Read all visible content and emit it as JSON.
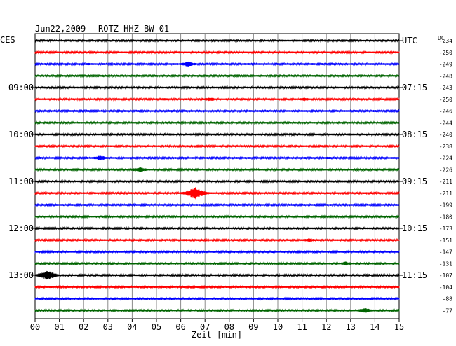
{
  "header": {
    "date": "Jun22,2009",
    "station": "ROTZ HHZ BW 01",
    "left_zone": "CES",
    "right_zone": "UTC",
    "dc_label": "DC"
  },
  "chart_data": {
    "type": "line",
    "title": "Jun22,2009   ROTZ HHZ BW 01",
    "xlabel": "Zeit [min]",
    "xlim": [
      0,
      15
    ],
    "x_ticks": [
      "00",
      "01",
      "02",
      "03",
      "04",
      "05",
      "06",
      "07",
      "08",
      "09",
      "10",
      "11",
      "12",
      "13",
      "14",
      "15"
    ],
    "grid": true,
    "trace_colors": [
      "#000000",
      "#ff0000",
      "#0000ff",
      "#006400"
    ],
    "left_time_labels": [
      {
        "trace": 4,
        "label": "09:00"
      },
      {
        "trace": 8,
        "label": "10:00"
      },
      {
        "trace": 12,
        "label": "11:00"
      },
      {
        "trace": 16,
        "label": "12:00"
      },
      {
        "trace": 20,
        "label": "13:00"
      }
    ],
    "right_time_labels": [
      {
        "trace": 0,
        "label": "UTC"
      },
      {
        "trace": 4,
        "label": "07:15"
      },
      {
        "trace": 8,
        "label": "08:15"
      },
      {
        "trace": 12,
        "label": "09:15"
      },
      {
        "trace": 16,
        "label": "10:15"
      },
      {
        "trace": 20,
        "label": "11:15"
      }
    ],
    "dc_offsets": [
      "-234",
      "-250",
      "-249",
      "-248",
      "-243",
      "-250",
      "-246",
      "-244",
      "-240",
      "-238",
      "-224",
      "-226",
      "-211",
      "-211",
      "-199",
      "-180",
      "-173",
      "-151",
      "-147",
      "-131",
      "-107",
      "-104",
      "-88",
      "-77"
    ],
    "events": [
      {
        "trace": 2,
        "minute": 6.3,
        "amplitude": 4
      },
      {
        "trace": 2,
        "minute": 2.2,
        "amplitude": 2
      },
      {
        "trace": 5,
        "minute": 7.2,
        "amplitude": 3
      },
      {
        "trace": 5,
        "minute": 11.1,
        "amplitude": 3
      },
      {
        "trace": 5,
        "minute": 5.3,
        "amplitude": 2
      },
      {
        "trace": 8,
        "minute": 5.6,
        "amplitude": 2
      },
      {
        "trace": 8,
        "minute": 13.0,
        "amplitude": 2
      },
      {
        "trace": 10,
        "minute": 2.7,
        "amplitude": 4
      },
      {
        "trace": 10,
        "minute": 12.1,
        "amplitude": 2
      },
      {
        "trace": 11,
        "minute": 4.3,
        "amplitude": 4
      },
      {
        "trace": 13,
        "minute": 6.6,
        "amplitude": 10
      },
      {
        "trace": 17,
        "minute": 6.2,
        "amplitude": 2
      },
      {
        "trace": 17,
        "minute": 11.3,
        "amplitude": 3
      },
      {
        "trace": 19,
        "minute": 12.8,
        "amplitude": 3
      },
      {
        "trace": 20,
        "minute": 0.5,
        "amplitude": 8
      },
      {
        "trace": 23,
        "minute": 7.5,
        "amplitude": 2
      },
      {
        "trace": 23,
        "minute": 13.6,
        "amplitude": 4
      }
    ]
  }
}
